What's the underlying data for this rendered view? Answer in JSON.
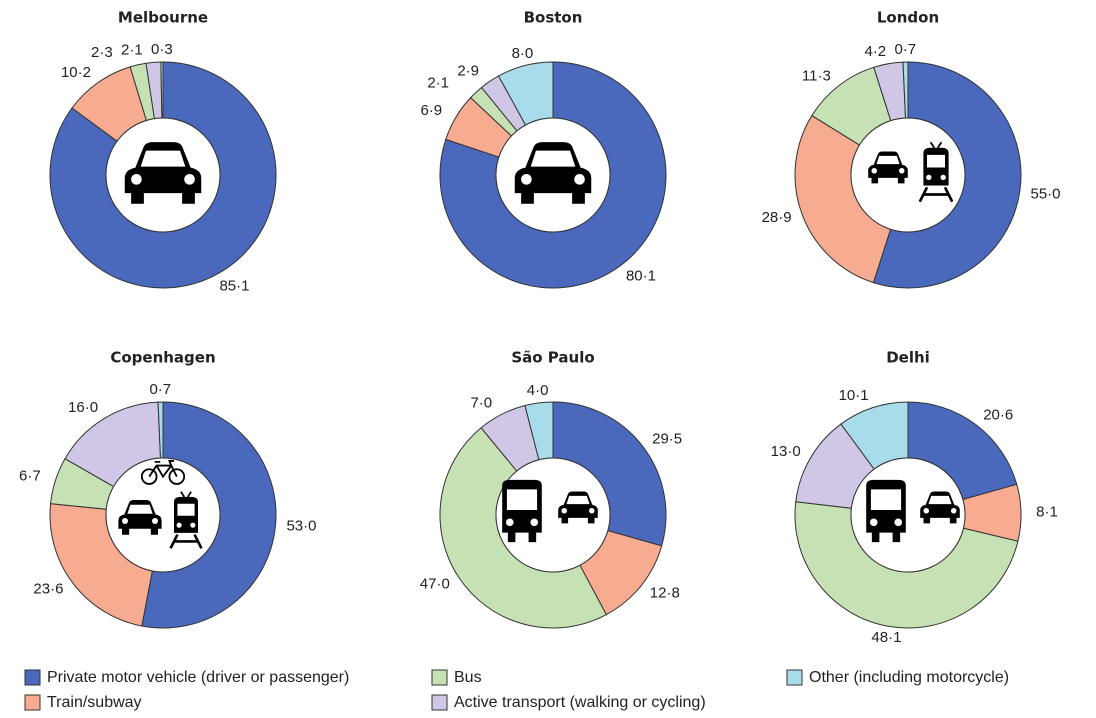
{
  "chart_data": [
    {
      "type": "pie",
      "title": "Melbourne",
      "values": [
        85.1,
        10.2,
        2.3,
        2.1,
        0.3
      ],
      "value_labels": [
        "85·1",
        "10·2",
        "2·3",
        "2·1",
        "0·3"
      ]
    },
    {
      "type": "pie",
      "title": "Boston",
      "values": [
        80.1,
        6.9,
        2.1,
        2.9,
        8.0
      ],
      "value_labels": [
        "80·1",
        "6·9",
        "2·1",
        "2·9",
        "8·0"
      ]
    },
    {
      "type": "pie",
      "title": "London",
      "values": [
        55.0,
        28.9,
        11.3,
        4.2,
        0.7
      ],
      "value_labels": [
        "55·0",
        "28·9",
        "11·3",
        "4·2",
        "0·7"
      ]
    },
    {
      "type": "pie",
      "title": "Copenhagen",
      "values": [
        53.0,
        23.6,
        6.7,
        16.0,
        0.7
      ],
      "value_labels": [
        "53·0",
        "23·6",
        "6·7",
        "16·0",
        "0·7"
      ]
    },
    {
      "type": "pie",
      "title": "São Paulo",
      "values": [
        29.5,
        12.8,
        47.0,
        7.0,
        4.0
      ],
      "value_labels": [
        "29·5",
        "12·8",
        "47·0",
        "7·0",
        "4·0"
      ]
    },
    {
      "type": "pie",
      "title": "Delhi",
      "values": [
        20.6,
        8.1,
        48.1,
        13.0,
        10.1
      ],
      "value_labels": [
        "20·6",
        "8·1",
        "48·1",
        "13·0",
        "10·1"
      ]
    }
  ],
  "legend": {
    "categories": [
      "Private motor vehicle (driver or passenger)",
      "Train/subway",
      "Bus",
      "Active transport (walking or cycling)",
      "Other (including motorcycle)"
    ],
    "colors": [
      "#4a69bd",
      "#f7ab90",
      "#c6e2b4",
      "#d0c6e6",
      "#a9dcea"
    ]
  }
}
